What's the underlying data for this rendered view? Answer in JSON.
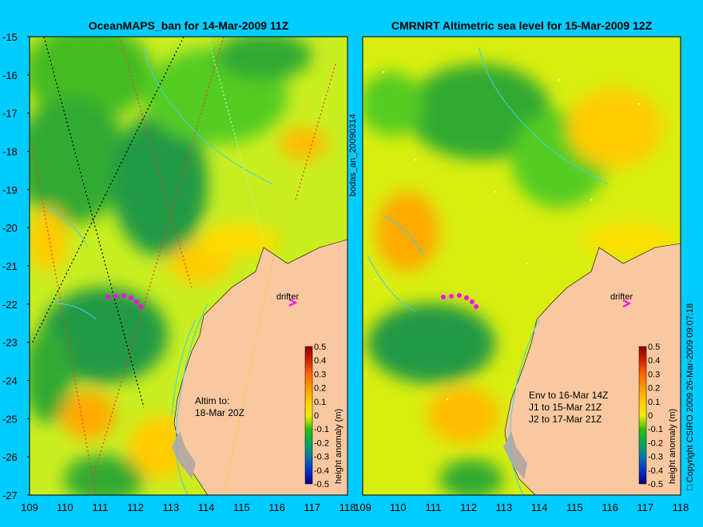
{
  "left_panel": {
    "title": "OceanMAPS_ban for 14-Mar-2009 11Z",
    "annotation_lines": [
      "Altim to:",
      "18-Mar 20Z"
    ],
    "drifter_label": "drifter"
  },
  "right_panel": {
    "title": "CMRNRT Altimetric sea level  for 15-Mar-2009 12Z",
    "annotation_lines": [
      "Env to 16-Mar 14Z",
      "J1 to 15-Mar 21Z",
      "J2 to 17-Mar 21Z"
    ],
    "drifter_label": "drifter"
  },
  "axes": {
    "lat_ticks": [
      "-15",
      "-16",
      "-17",
      "-18",
      "-19",
      "-20",
      "-21",
      "-22",
      "-23",
      "-24",
      "-25",
      "-26",
      "-27"
    ],
    "lon_ticks": [
      "109",
      "110",
      "111",
      "112",
      "113",
      "114",
      "115",
      "116",
      "117",
      "118"
    ]
  },
  "colorbar": {
    "label": "height anomaly (m)",
    "ticks": [
      "0.5",
      "0.4",
      "0.3",
      "0.2",
      "0.1",
      "0",
      "-0.1",
      "-0.2",
      "-0.3",
      "-0.4",
      "-0.5"
    ],
    "colors": [
      "#8b0000",
      "#d62000",
      "#ff6600",
      "#ff9900",
      "#ffcc00",
      "#ffee00",
      "#ccee00",
      "#66cc00",
      "#00aa33",
      "#008866",
      "#0066aa",
      "#0033cc",
      "#000088"
    ]
  },
  "side_labels": {
    "file_id": "bodas_an_20090314",
    "copyright": "□ Copyright CSIRO 2009   26-Mar-2009 09:07:18"
  },
  "colors": {
    "background": "#00ccff",
    "land": "#f9c8a0",
    "land_grey": "#b8aaa0",
    "contour": "#40d0e0",
    "drifter": "#ff00ff"
  }
}
